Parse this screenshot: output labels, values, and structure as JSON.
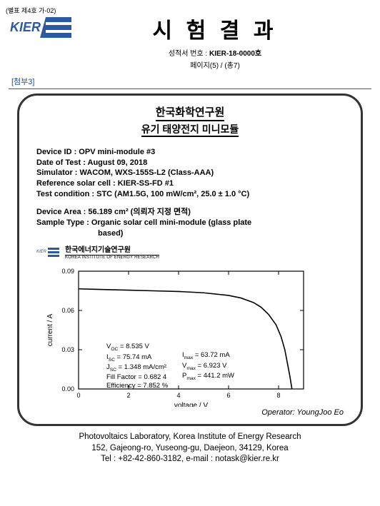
{
  "form_no": "(별표 제4호 가-02)",
  "header": {
    "logo_text": "KIER",
    "title": "시 험 결 과",
    "report_label": "성적서 번호 :",
    "report_no": "KIER-18-0000호",
    "page": "페이지(5) / (총7)"
  },
  "attach_label": "[첨부3]",
  "panel": {
    "title": "한국화학연구원",
    "subtitle": "유기 태양전지 미니모듈",
    "meta": {
      "device_id": "Device ID : OPV mini-module #3",
      "date": "Date of Test : August 09, 2018",
      "simulator": "Simulator : WACOM, WXS-155S-L2 (Class-AAA)",
      "refcell": "Reference solar cell : KIER-SS-FD #1",
      "cond": "Test condition : STC (AM1.5G, 100 mW/cm², 25.0 ± 1.0 °C)",
      "area": "Device Area : 56.189 cm² (의뢰자 지정 면적)",
      "sample1": "Sample Type : Organic solar cell mini-module (glass plate",
      "sample2": "based)"
    },
    "inst": {
      "name": "한국에너지기술연구원",
      "sub": "KOREA INSTITUTE OF ENERGY RESEARCH",
      "tag": "KIER"
    },
    "chart": {
      "xlabel": "voltage / V",
      "ylabel": "current / A",
      "xlim": [
        0,
        9
      ],
      "ylim": [
        0,
        0.09
      ],
      "xticks": [
        0,
        2,
        4,
        6,
        8
      ],
      "yticks": [
        "0.00",
        "0.03",
        "0.06",
        "0.09"
      ],
      "curve": [
        [
          0,
          0.0765
        ],
        [
          1,
          0.076
        ],
        [
          2,
          0.0755
        ],
        [
          3,
          0.075
        ],
        [
          4,
          0.0745
        ],
        [
          5,
          0.0735
        ],
        [
          6,
          0.0715
        ],
        [
          6.5,
          0.0695
        ],
        [
          7,
          0.066
        ],
        [
          7.3,
          0.0625
        ],
        [
          7.6,
          0.057
        ],
        [
          7.9,
          0.049
        ],
        [
          8.1,
          0.04
        ],
        [
          8.25,
          0.03
        ],
        [
          8.35,
          0.02
        ],
        [
          8.45,
          0.01
        ],
        [
          8.535,
          0.0
        ]
      ],
      "line_color": "#000000",
      "grid_color": "#000000",
      "background": "#ffffff",
      "annot_left": [
        "V_OC = 8.535 V",
        "I_SC = 75.74 mA",
        "J_SC = 1.348 mA/cm²",
        "Fill Factor = 0.682 4",
        "Efficiency = 7.852 %"
      ],
      "annot_right": [
        "I_max = 63.72 mA",
        "V_max = 6.923 V",
        "P_max = 441.2 mW"
      ]
    },
    "operator": "Operator: YoungJoo Eo"
  },
  "footer": {
    "l1": "Photovoltaics Laboratory, Korea Institute of Energy Research",
    "l2": "152, Gajeong-ro, Yuseong-gu, Daejeon, 34129, Korea",
    "l3": "Tel : +82-42-860-3182, e-mail : notask@kier.re.kr"
  },
  "colors": {
    "logo_blue": "#2c5aa0",
    "attach_blue": "#1a4ea0"
  }
}
